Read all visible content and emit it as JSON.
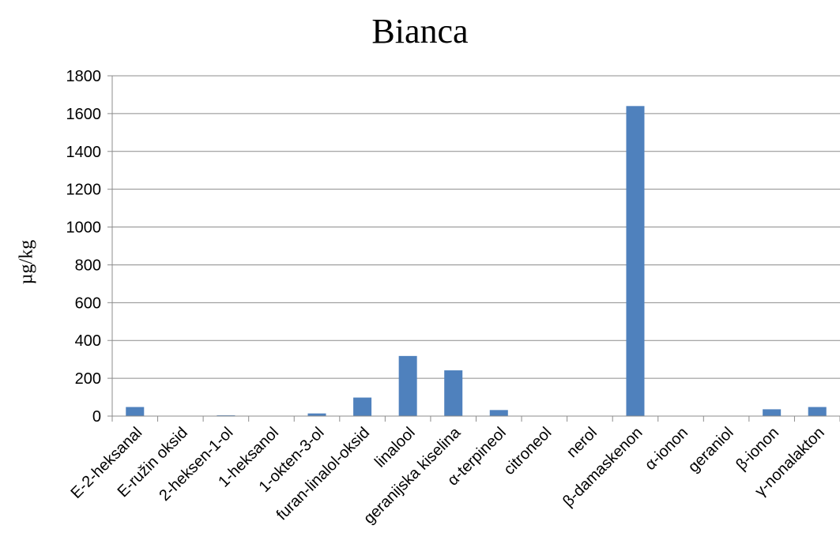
{
  "chart_data": {
    "type": "bar",
    "title": "Bianca",
    "xlabel": "",
    "ylabel": "µg/kg",
    "ylim": [
      0,
      1800
    ],
    "ytick_values": [
      0,
      200,
      400,
      600,
      800,
      1000,
      1200,
      1400,
      1600,
      1800
    ],
    "yticks": [
      "0",
      "200",
      "400",
      "600",
      "800",
      "1000",
      "1200",
      "1400",
      "1600",
      "1800"
    ],
    "categories": [
      "E-2-heksanal",
      "E-ružin oksid",
      "2-heksen-1-ol",
      "1-heksanol",
      "1-okten-3-ol",
      "furan-linalol-oksid",
      "linalool",
      "geranijska kiselina",
      "α-terpineol",
      "citroneol",
      "nerol",
      "β-damaskenon",
      "α-ionon",
      "geraniol",
      "β-ionon",
      "γ-nonalakton"
    ],
    "values": [
      48,
      0,
      4,
      0,
      14,
      98,
      318,
      242,
      32,
      0,
      0,
      1640,
      0,
      0,
      36,
      48
    ],
    "grid": true,
    "legend": "none",
    "bar_color": "#4F81BD"
  }
}
